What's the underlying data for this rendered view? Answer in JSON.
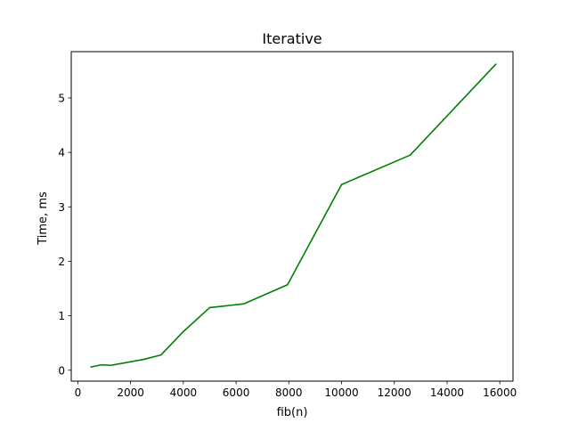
{
  "chart_data": {
    "type": "line",
    "title": "Iterative",
    "xlabel": "fib(n)",
    "ylabel": "Time, ms",
    "xlim": [
      -250,
      16500
    ],
    "ylim": [
      -0.2,
      5.85
    ],
    "x_ticks": [
      0,
      2000,
      4000,
      6000,
      8000,
      10000,
      12000,
      14000,
      16000
    ],
    "y_ticks": [
      0,
      1,
      2,
      3,
      4,
      5
    ],
    "grid": false,
    "legend": "none",
    "series": [
      {
        "color": "#008000",
        "points": [
          [
            500,
            0.06
          ],
          [
            900,
            0.1
          ],
          [
            1250,
            0.09
          ],
          [
            2500,
            0.2
          ],
          [
            3150,
            0.28
          ],
          [
            4000,
            0.71
          ],
          [
            5000,
            1.15
          ],
          [
            6300,
            1.22
          ],
          [
            7950,
            1.57
          ],
          [
            10000,
            3.41
          ],
          [
            12600,
            3.95
          ],
          [
            15850,
            5.62
          ]
        ]
      }
    ]
  }
}
